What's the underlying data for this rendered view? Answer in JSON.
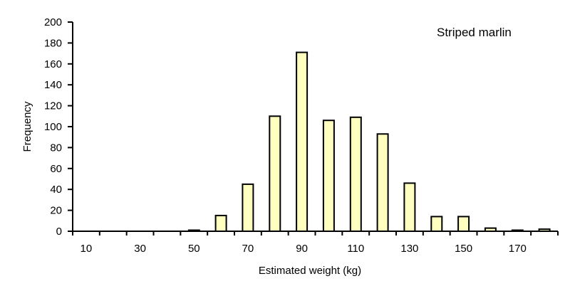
{
  "chart_data": {
    "type": "bar",
    "title": "Striped marlin",
    "xlabel": "Estimated weight (kg)",
    "ylabel": "Frequency",
    "ylim": [
      0,
      200
    ],
    "yticks": [
      0,
      20,
      40,
      60,
      80,
      100,
      120,
      140,
      160,
      180,
      200
    ],
    "xtick_labels": [
      "10",
      "30",
      "50",
      "70",
      "90",
      "110",
      "130",
      "150",
      "170"
    ],
    "categories": [
      "10",
      "20",
      "30",
      "40",
      "50",
      "60",
      "70",
      "80",
      "90",
      "100",
      "110",
      "120",
      "130",
      "140",
      "150",
      "160",
      "170",
      "180"
    ],
    "values": [
      0,
      0,
      0,
      0,
      1,
      15,
      45,
      110,
      171,
      106,
      109,
      93,
      46,
      14,
      14,
      3,
      1,
      2
    ],
    "bar_color": "#ffffc0",
    "bar_edge_color": "#000000",
    "grid": false,
    "legend": null
  }
}
